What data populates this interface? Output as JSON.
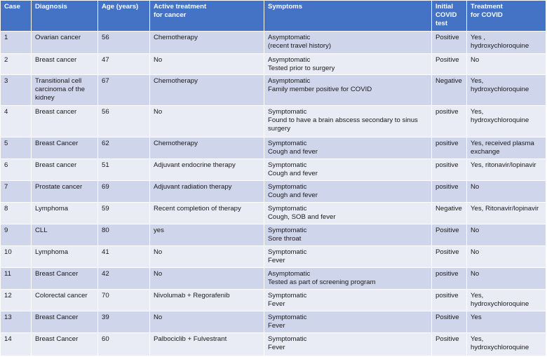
{
  "table": {
    "header": [
      "Case",
      "Diagnosis",
      "Age (years)",
      [
        "Active treatment",
        "for cancer"
      ],
      "Symptoms",
      "Initial COVID test",
      [
        "Treatment",
        " for COVID"
      ]
    ],
    "rows": [
      [
        "1",
        "Ovarian cancer",
        "56",
        "Chemotherapy",
        [
          "Asymptomatic",
          "(recent travel history)"
        ],
        "Positive",
        "Yes , hydroxychloroquine"
      ],
      [
        "2",
        "Breast cancer",
        "47",
        "No",
        [
          "Asymptomatic",
          "Tested prior to surgery"
        ],
        "Positive",
        "No"
      ],
      [
        "3",
        "Transitional cell carcinoma of the kidney",
        "67",
        "Chemotherapy",
        [
          "Asymptomatic",
          "Family member positive for COVID"
        ],
        "Negative",
        "Yes, hydroxychloroquine"
      ],
      [
        "4",
        "Breast cancer",
        "56",
        "No",
        [
          "Symptomatic",
          "Found to have a brain abscess secondary to sinus surgery"
        ],
        "positive",
        "Yes, hydroxychloroquine"
      ],
      [
        "5",
        "Breast Cancer",
        "62",
        "Chemotherapy",
        [
          "Symptomatic",
          "Cough and fever"
        ],
        "positive",
        "Yes, received plasma exchange"
      ],
      [
        "6",
        "Breast cancer",
        "51",
        "Adjuvant endocrine therapy",
        [
          "Symptomatic",
          "Cough and fever"
        ],
        "positive",
        "Yes, ritonavir/lopinavir"
      ],
      [
        "7",
        "Prostate cancer",
        "69",
        "Adjuvant radiation therapy",
        [
          "Symptomatic",
          "Cough and fever"
        ],
        "positive",
        "No"
      ],
      [
        "8",
        "Lymphoma",
        "59",
        "Recent completion of therapy",
        [
          "Symptomatic",
          "Cough, SOB and fever"
        ],
        "Negative",
        "Yes, Ritonavir/lopinavir"
      ],
      [
        "9",
        "CLL",
        "80",
        "yes",
        [
          "Symptomatic",
          "Sore throat"
        ],
        "Positive",
        "No"
      ],
      [
        "10",
        "Lymphoma",
        "41",
        "No",
        [
          "Symptomatic",
          "Fever"
        ],
        "Positive",
        "No"
      ],
      [
        "11",
        "Breast Cancer",
        "42",
        "No",
        [
          "Asymptomatic",
          "Tested as part of screening program"
        ],
        "positive",
        "No"
      ],
      [
        "12",
        "Colorectal cancer",
        "70",
        "Nivolumab + Regorafenib",
        [
          "Symptomatic",
          "Fever"
        ],
        "positive",
        "Yes, hydroxychloroquine"
      ],
      [
        "13",
        "Breast Cancer",
        "39",
        "No",
        [
          "Symptomatic",
          "Fever"
        ],
        "Positive",
        "Yes"
      ],
      [
        "14",
        "Breast Cancer",
        "60",
        "Palbociclib + Fulvestrant",
        [
          "Symptomatic",
          "Fever"
        ],
        "Positive",
        "Yes, hydroxychloroquine"
      ]
    ]
  }
}
